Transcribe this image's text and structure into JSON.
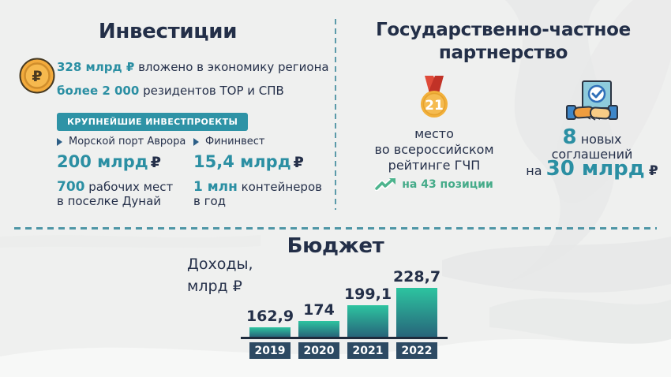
{
  "colors": {
    "accent_teal": "#2b8fa3",
    "navy": "#232f48",
    "green": "#45ab89",
    "gold": "#f2b23a",
    "ribbon_red": "#d8453a",
    "bar_top": "#2dc4a0",
    "bar_bottom": "#27657a",
    "year_box": "#2d4a63",
    "dash_line": "#5b9aa9"
  },
  "investments": {
    "title": "Инвестиции",
    "coin_symbol": "₽",
    "facts": [
      {
        "value": "328 млрд ₽",
        "text": "вложено в экономику региона"
      },
      {
        "value": "более 2 000",
        "text": "резидентов ТОР и СПВ"
      }
    ],
    "badge": "КРУПНЕЙШИЕ ИНВЕСТПРОЕКТЫ",
    "projects": [
      {
        "name": "Морской порт Аврора",
        "amount": "200 млрд",
        "currency": "₽",
        "extra_value": "700",
        "extra_text": "рабочих мест",
        "extra_line2": "в поселке Дунай"
      },
      {
        "name": "Фининвест",
        "amount": "15,4 млрд",
        "currency": "₽",
        "extra_value": "1 млн",
        "extra_text": "контейнеров",
        "extra_line2": "в год"
      }
    ]
  },
  "ppp": {
    "title_line1": "Государственно-частное",
    "title_line2": "партнерство",
    "rating": {
      "medal_number": "21",
      "line1": "место",
      "line2": "во всероссийском",
      "line3": "рейтинге ГЧП",
      "growth": "на 43 позиции"
    },
    "agreements": {
      "count": "8",
      "count_text": "новых",
      "line2": "соглашений",
      "prefix": "на",
      "amount": "30 млрд",
      "currency": "₽"
    }
  },
  "budget": {
    "title": "Бюджет",
    "axis_label_line1": "Доходы,",
    "axis_label_line2": "млрд ₽"
  },
  "chart_data": {
    "type": "bar",
    "title": "Бюджет",
    "ylabel": "Доходы, млрд ₽",
    "categories": [
      "2019",
      "2020",
      "2021",
      "2022"
    ],
    "values": [
      162.9,
      174,
      199.1,
      228.7
    ],
    "value_labels": [
      "162,9",
      "174",
      "199,1",
      "228,7"
    ],
    "ylim": [
      148,
      232
    ],
    "grid": false,
    "legend": false
  }
}
